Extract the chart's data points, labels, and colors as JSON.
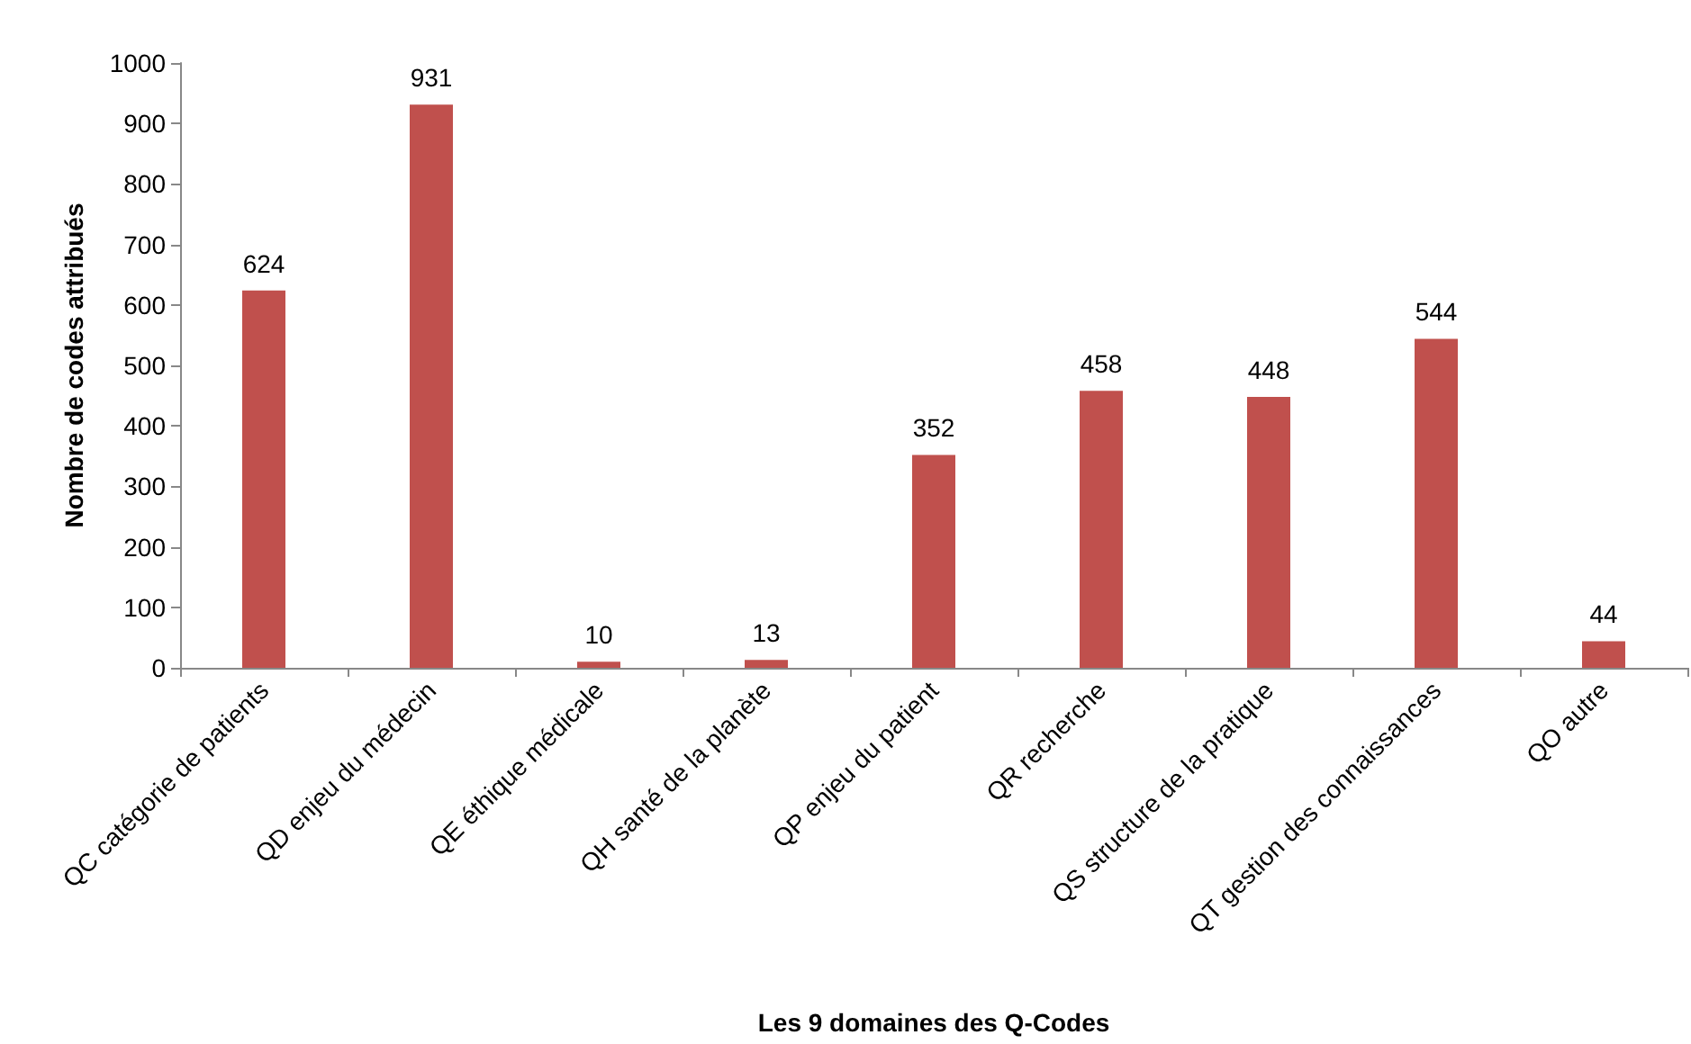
{
  "chart_data": {
    "type": "bar",
    "xlabel": "Les 9 domaines des Q-Codes",
    "ylabel": "Nombre de codes attribués",
    "categories": [
      "QC catégorie de patients",
      "QD enjeu du médecin",
      "QE éthique médicale",
      "QH santé de la planète",
      "QP enjeu du patient",
      "QR recherche",
      "QS structure de la pratique",
      "QT gestion des connaissances",
      "QO autre"
    ],
    "values": [
      624,
      931,
      10,
      13,
      352,
      458,
      448,
      544,
      44
    ],
    "color": "#c0504d",
    "ylim": [
      0,
      1000
    ],
    "yticks": [
      0,
      100,
      200,
      300,
      400,
      500,
      600,
      700,
      800,
      900,
      1000
    ],
    "grid": false,
    "data_labels": true
  }
}
